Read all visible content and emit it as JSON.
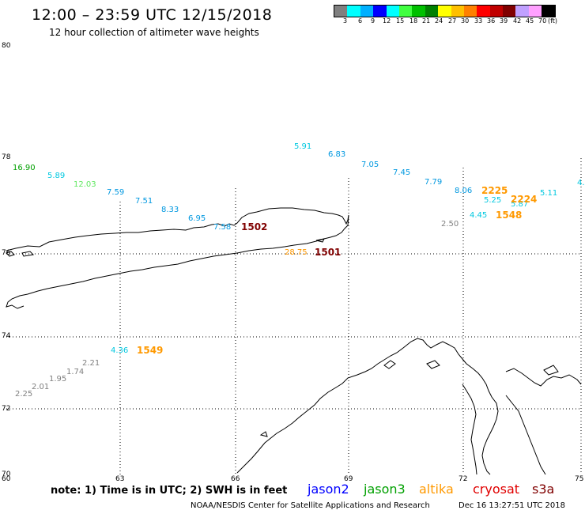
{
  "header": {
    "title": "12:00 – 23:59 UTC 12/15/2018",
    "subtitle": "12 hour collection of altimeter wave heights"
  },
  "color_scale": {
    "colors": [
      "#808080",
      "#00ffff",
      "#00b0ff",
      "#0000ff",
      "#00ffff",
      "#40ff40",
      "#00c000",
      "#008000",
      "#ffff00",
      "#ffc000",
      "#ff8000",
      "#ff0000",
      "#c00000",
      "#800000",
      "#c0a0ff",
      "#ffa0ff",
      "#000000"
    ],
    "labels": [
      "3",
      "6",
      "9",
      "12",
      "15",
      "18",
      "21",
      "24",
      "27",
      "30",
      "33",
      "36",
      "39",
      "42",
      "45",
      "70",
      "(ft)"
    ]
  },
  "axes": {
    "lat_labels": [
      "80",
      "78",
      "76",
      "74",
      "72",
      "70"
    ],
    "lon_labels": [
      "60",
      "63",
      "66",
      "69",
      "72",
      "75"
    ]
  },
  "observations": [
    {
      "text": "16.90",
      "color": "#00a000"
    },
    {
      "text": "5.89",
      "color": "#00c8e0"
    },
    {
      "text": "12.03",
      "color": "#60e860"
    },
    {
      "text": "7.59",
      "color": "#0098e0"
    },
    {
      "text": "7.51",
      "color": "#0098e0"
    },
    {
      "text": "8.33",
      "color": "#0098e0"
    },
    {
      "text": "6.95",
      "color": "#0098e0"
    },
    {
      "text": "7.58",
      "color": "#0098e0"
    },
    {
      "text": "1502",
      "color": "#800000"
    },
    {
      "text": "28.75",
      "color": "#ff9900"
    },
    {
      "text": "1501",
      "color": "#800000"
    },
    {
      "text": "5.91",
      "color": "#00c8e0"
    },
    {
      "text": "6.83",
      "color": "#0098e0"
    },
    {
      "text": "7.05",
      "color": "#0098e0"
    },
    {
      "text": "7.45",
      "color": "#0098e0"
    },
    {
      "text": "7.79",
      "color": "#0098e0"
    },
    {
      "text": "8.06",
      "color": "#0098e0"
    },
    {
      "text": "2225",
      "color": "#ff9900"
    },
    {
      "text": "5.25",
      "color": "#00c8e0"
    },
    {
      "text": "5.87",
      "color": "#00c8e0"
    },
    {
      "text": "2224",
      "color": "#ff9900"
    },
    {
      "text": "5.11",
      "color": "#00c8e0"
    },
    {
      "text": "4.",
      "color": "#00c8e0"
    },
    {
      "text": "2.50",
      "color": "#808080"
    },
    {
      "text": "4.45",
      "color": "#00c8e0"
    },
    {
      "text": "1548",
      "color": "#ff9900"
    },
    {
      "text": "4.36",
      "color": "#00c8e0"
    },
    {
      "text": "1549",
      "color": "#ff9900"
    },
    {
      "text": "2.21",
      "color": "#808080"
    },
    {
      "text": "1.74",
      "color": "#808080"
    },
    {
      "text": "1.95",
      "color": "#808080"
    },
    {
      "text": "2.01",
      "color": "#808080"
    },
    {
      "text": "2.25",
      "color": "#808080"
    }
  ],
  "note": "note: 1) Time is in UTC; 2) SWH is in feet",
  "satellites": [
    {
      "name": "jason2",
      "color": "#0000ff"
    },
    {
      "name": "jason3",
      "color": "#00a000"
    },
    {
      "name": "altika",
      "color": "#ff9900"
    },
    {
      "name": "cryosat",
      "color": "#e00000"
    },
    {
      "name": "s3a",
      "color": "#800000"
    }
  ],
  "footer": {
    "credit": "NOAA/NESDIS Center for Satellite Applications and Research",
    "timestamp": "Dec 16 13:27:51 UTC 2018"
  }
}
